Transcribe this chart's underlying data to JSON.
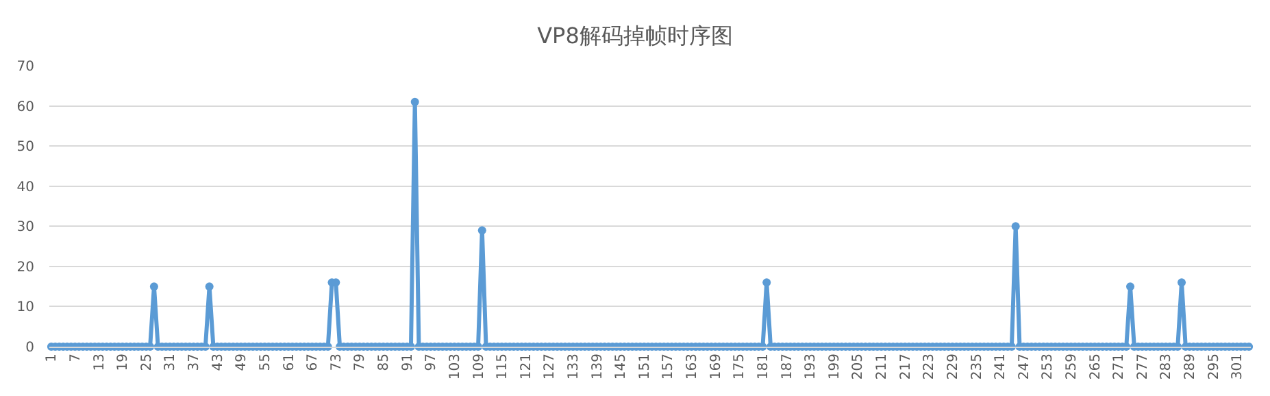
{
  "chart_data": {
    "type": "line",
    "title": "VP8解码掉帧时序图",
    "x": [
      1,
      2,
      3,
      4,
      5,
      6,
      7,
      8,
      9,
      10,
      11,
      12,
      13,
      14,
      15,
      16,
      17,
      18,
      19,
      20,
      21,
      22,
      23,
      24,
      25,
      26,
      27,
      28,
      29,
      30,
      31,
      32,
      33,
      34,
      35,
      36,
      37,
      38,
      39,
      40,
      41,
      42,
      43,
      44,
      45,
      46,
      47,
      48,
      49,
      50,
      51,
      52,
      53,
      54,
      55,
      56,
      57,
      58,
      59,
      60,
      61,
      62,
      63,
      64,
      65,
      66,
      67,
      68,
      69,
      70,
      71,
      72,
      73,
      74,
      75,
      76,
      77,
      78,
      79,
      80,
      81,
      82,
      83,
      84,
      85,
      86,
      87,
      88,
      89,
      90,
      91,
      92,
      93,
      94,
      95,
      96,
      97,
      98,
      99,
      100,
      101,
      102,
      103,
      104,
      105,
      106,
      107,
      108,
      109,
      110,
      111,
      112,
      113,
      114,
      115,
      116,
      117,
      118,
      119,
      120,
      121,
      122,
      123,
      124,
      125,
      126,
      127,
      128,
      129,
      130,
      131,
      132,
      133,
      134,
      135,
      136,
      137,
      138,
      139,
      140,
      141,
      142,
      143,
      144,
      145,
      146,
      147,
      148,
      149,
      150,
      151,
      152,
      153,
      154,
      155,
      156,
      157,
      158,
      159,
      160,
      161,
      162,
      163,
      164,
      165,
      166,
      167,
      168,
      169,
      170,
      171,
      172,
      173,
      174,
      175,
      176,
      177,
      178,
      179,
      180,
      181,
      182,
      183,
      184,
      185,
      186,
      187,
      188,
      189,
      190,
      191,
      192,
      193,
      194,
      195,
      196,
      197,
      198,
      199,
      200,
      201,
      202,
      203,
      204,
      205,
      206,
      207,
      208,
      209,
      210,
      211,
      212,
      213,
      214,
      215,
      216,
      217,
      218,
      219,
      220,
      221,
      222,
      223,
      224,
      225,
      226,
      227,
      228,
      229,
      230,
      231,
      232,
      233,
      234,
      235,
      236,
      237,
      238,
      239,
      240,
      241,
      242,
      243,
      244,
      245,
      246,
      247,
      248,
      249,
      250,
      251,
      252,
      253,
      254,
      255,
      256,
      257,
      258,
      259,
      260,
      261,
      262,
      263,
      264,
      265,
      266,
      267,
      268,
      269,
      270,
      271,
      272,
      273,
      274,
      275,
      276,
      277,
      278,
      279,
      280,
      281,
      282,
      283,
      284,
      285,
      286,
      287,
      288,
      289,
      290,
      291,
      292,
      293,
      294,
      295,
      296,
      297,
      298,
      299,
      300,
      301,
      302,
      303,
      304
    ],
    "series": [
      {
        "color": "#5b9bd5",
        "values": [
          0,
          0,
          0,
          0,
          0,
          0,
          0,
          0,
          0,
          0,
          0,
          0,
          0,
          0,
          0,
          0,
          0,
          0,
          0,
          0,
          0,
          0,
          0,
          0,
          0,
          0,
          15,
          0,
          0,
          0,
          0,
          0,
          0,
          0,
          0,
          0,
          0,
          0,
          0,
          0,
          15,
          0,
          0,
          0,
          0,
          0,
          0,
          0,
          0,
          0,
          0,
          0,
          0,
          0,
          0,
          0,
          0,
          0,
          0,
          0,
          0,
          0,
          0,
          0,
          0,
          0,
          0,
          0,
          0,
          0,
          0,
          16,
          16,
          0,
          0,
          0,
          0,
          0,
          0,
          0,
          0,
          0,
          0,
          0,
          0,
          0,
          0,
          0,
          0,
          0,
          0,
          0,
          61,
          0,
          0,
          0,
          0,
          0,
          0,
          0,
          0,
          0,
          0,
          0,
          0,
          0,
          0,
          0,
          0,
          29,
          0,
          0,
          0,
          0,
          0,
          0,
          0,
          0,
          0,
          0,
          0,
          0,
          0,
          0,
          0,
          0,
          0,
          0,
          0,
          0,
          0,
          0,
          0,
          0,
          0,
          0,
          0,
          0,
          0,
          0,
          0,
          0,
          0,
          0,
          0,
          0,
          0,
          0,
          0,
          0,
          0,
          0,
          0,
          0,
          0,
          0,
          0,
          0,
          0,
          0,
          0,
          0,
          0,
          0,
          0,
          0,
          0,
          0,
          0,
          0,
          0,
          0,
          0,
          0,
          0,
          0,
          0,
          0,
          0,
          0,
          0,
          16,
          0,
          0,
          0,
          0,
          0,
          0,
          0,
          0,
          0,
          0,
          0,
          0,
          0,
          0,
          0,
          0,
          0,
          0,
          0,
          0,
          0,
          0,
          0,
          0,
          0,
          0,
          0,
          0,
          0,
          0,
          0,
          0,
          0,
          0,
          0,
          0,
          0,
          0,
          0,
          0,
          0,
          0,
          0,
          0,
          0,
          0,
          0,
          0,
          0,
          0,
          0,
          0,
          0,
          0,
          0,
          0,
          0,
          0,
          0,
          0,
          0,
          0,
          30,
          0,
          0,
          0,
          0,
          0,
          0,
          0,
          0,
          0,
          0,
          0,
          0,
          0,
          0,
          0,
          0,
          0,
          0,
          0,
          0,
          0,
          0,
          0,
          0,
          0,
          0,
          0,
          0,
          15,
          0,
          0,
          0,
          0,
          0,
          0,
          0,
          0,
          0,
          0,
          0,
          0,
          16,
          0,
          0,
          0,
          0,
          0,
          0,
          0,
          0,
          0,
          0,
          0,
          0,
          0,
          0,
          0,
          0,
          0
        ]
      }
    ],
    "xlim": [
      0.5,
      304.5
    ],
    "xticks": [
      1,
      7,
      13,
      19,
      25,
      31,
      37,
      43,
      49,
      55,
      61,
      67,
      73,
      79,
      85,
      91,
      97,
      103,
      109,
      115,
      121,
      127,
      133,
      139,
      145,
      151,
      157,
      163,
      169,
      175,
      181,
      187,
      193,
      199,
      205,
      211,
      217,
      223,
      229,
      235,
      241,
      247,
      253,
      259,
      265,
      271,
      277,
      283,
      289,
      295,
      301
    ],
    "ylim": [
      0,
      70
    ],
    "yticks": [
      0,
      10,
      20,
      30,
      40,
      50,
      60,
      70
    ],
    "grid": "y",
    "marker": "circle",
    "line_style": "solid"
  }
}
